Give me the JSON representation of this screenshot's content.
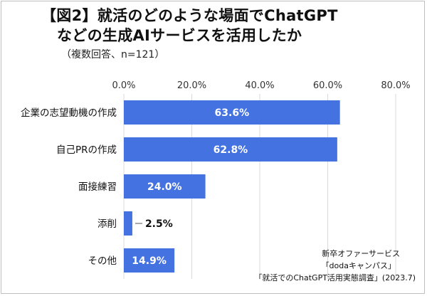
{
  "title_line1": "【図2】就活のどのような場面でChatGPT",
  "title_line2": "などの生成AIサービスを活用したか",
  "subtitle": "（複数回答、n=121）",
  "source_lines": [
    "新卒オファーサービス",
    "「dodaキャンパス」",
    "「就活でのChatGPT活用実態調査」(2023.7)"
  ],
  "colors": {
    "bar": "#4472e0",
    "grid": "#d9d9d9",
    "label_inside": "#ffffff",
    "label_outside": "#111111"
  },
  "chart_data": {
    "type": "bar",
    "orientation": "horizontal",
    "categories": [
      "企業の志望動機の作成",
      "自己PRの作成",
      "面接練習",
      "添削",
      "その他"
    ],
    "values": [
      63.6,
      62.8,
      24.0,
      2.5,
      14.9
    ],
    "data_labels": [
      "63.6%",
      "62.8%",
      "24.0%",
      "2.5%",
      "14.9%"
    ],
    "xlim": [
      0,
      80
    ],
    "xticks": [
      0,
      20,
      40,
      60,
      80
    ],
    "xtick_labels": [
      "0.0%",
      "20.0%",
      "40.0%",
      "60.0%",
      "80.0%"
    ],
    "grid": true,
    "axis_position": "top"
  }
}
